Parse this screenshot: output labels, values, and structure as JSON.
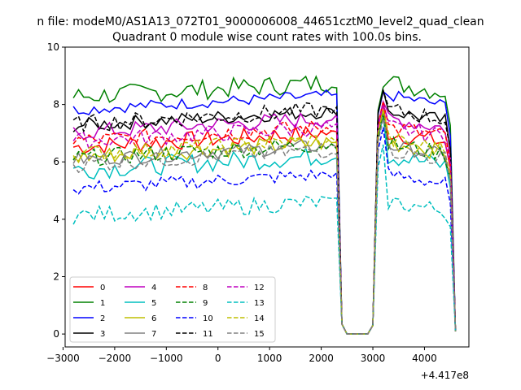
{
  "chart_data": {
    "type": "line",
    "suptitle": "n file: modeM0/AS1A13_072T01_9000006008_44651cztM0_level2_quad_clean",
    "title": "Quadrant 0 module wise count rates with 100.0s bins.",
    "xlabel": "",
    "ylabel": "",
    "x_offset_label": "+4.417e8",
    "xlim": [
      -2960,
      4860
    ],
    "ylim": [
      -0.45,
      10
    ],
    "x_ticks": [
      -3000,
      -2000,
      -1000,
      0,
      1000,
      2000,
      3000,
      4000
    ],
    "x_tick_labels": [
      "−3000",
      "−2000",
      "−1000",
      "0",
      "1000",
      "2000",
      "3000",
      "4000"
    ],
    "y_ticks": [
      0,
      2,
      4,
      6,
      8,
      10
    ],
    "y_tick_labels": [
      "0",
      "2",
      "4",
      "6",
      "8",
      "10"
    ],
    "legend_position": "lower-left",
    "grid": false,
    "x": {
      "start": -2800,
      "step": 100,
      "count": 75
    },
    "series": [
      {
        "name": "0",
        "color": "#ff0000",
        "dash": "solid",
        "base": 6.8,
        "amp": 0.32,
        "peak": 8.0
      },
      {
        "name": "1",
        "color": "#008000",
        "dash": "solid",
        "base": 8.55,
        "amp": 0.35,
        "peak": 8.6
      },
      {
        "name": "2",
        "color": "#0000ff",
        "dash": "solid",
        "base": 8.1,
        "amp": 0.2,
        "peak": 8.45
      },
      {
        "name": "3",
        "color": "#000000",
        "dash": "solid",
        "base": 7.55,
        "amp": 0.25,
        "peak": 8.5
      },
      {
        "name": "4",
        "color": "#bf00bf",
        "dash": "solid",
        "base": 7.3,
        "amp": 0.3,
        "peak": 8.1
      },
      {
        "name": "5",
        "color": "#00bfbf",
        "dash": "solid",
        "base": 6.0,
        "amp": 0.35,
        "peak": 7.6
      },
      {
        "name": "6",
        "color": "#bfbf00",
        "dash": "solid",
        "base": 6.45,
        "amp": 0.3,
        "peak": 7.8
      },
      {
        "name": "7",
        "color": "#808080",
        "dash": "solid",
        "base": 6.35,
        "amp": 0.25,
        "peak": 7.7
      },
      {
        "name": "8",
        "color": "#ff0000",
        "dash": "dashed",
        "base": 7.0,
        "amp": 0.3,
        "peak": 8.1
      },
      {
        "name": "9",
        "color": "#008000",
        "dash": "dashed",
        "base": 6.4,
        "amp": 0.3,
        "peak": 7.7
      },
      {
        "name": "10",
        "color": "#0000ff",
        "dash": "dashed",
        "base": 5.35,
        "amp": 0.25,
        "peak": 7.2
      },
      {
        "name": "11",
        "color": "#000000",
        "dash": "dashed",
        "base": 7.6,
        "amp": 0.3,
        "peak": 8.5
      },
      {
        "name": "12",
        "color": "#bf00bf",
        "dash": "dashed",
        "base": 7.0,
        "amp": 0.3,
        "peak": 8.0
      },
      {
        "name": "13",
        "color": "#00bfbf",
        "dash": "dashed",
        "base": 4.4,
        "amp": 0.3,
        "peak": 6.6
      },
      {
        "name": "14",
        "color": "#bfbf00",
        "dash": "dashed",
        "base": 6.55,
        "amp": 0.3,
        "peak": 7.8
      },
      {
        "name": "15",
        "color": "#808080",
        "dash": "dashed",
        "base": 6.2,
        "amp": 0.3,
        "peak": 7.5
      }
    ]
  }
}
